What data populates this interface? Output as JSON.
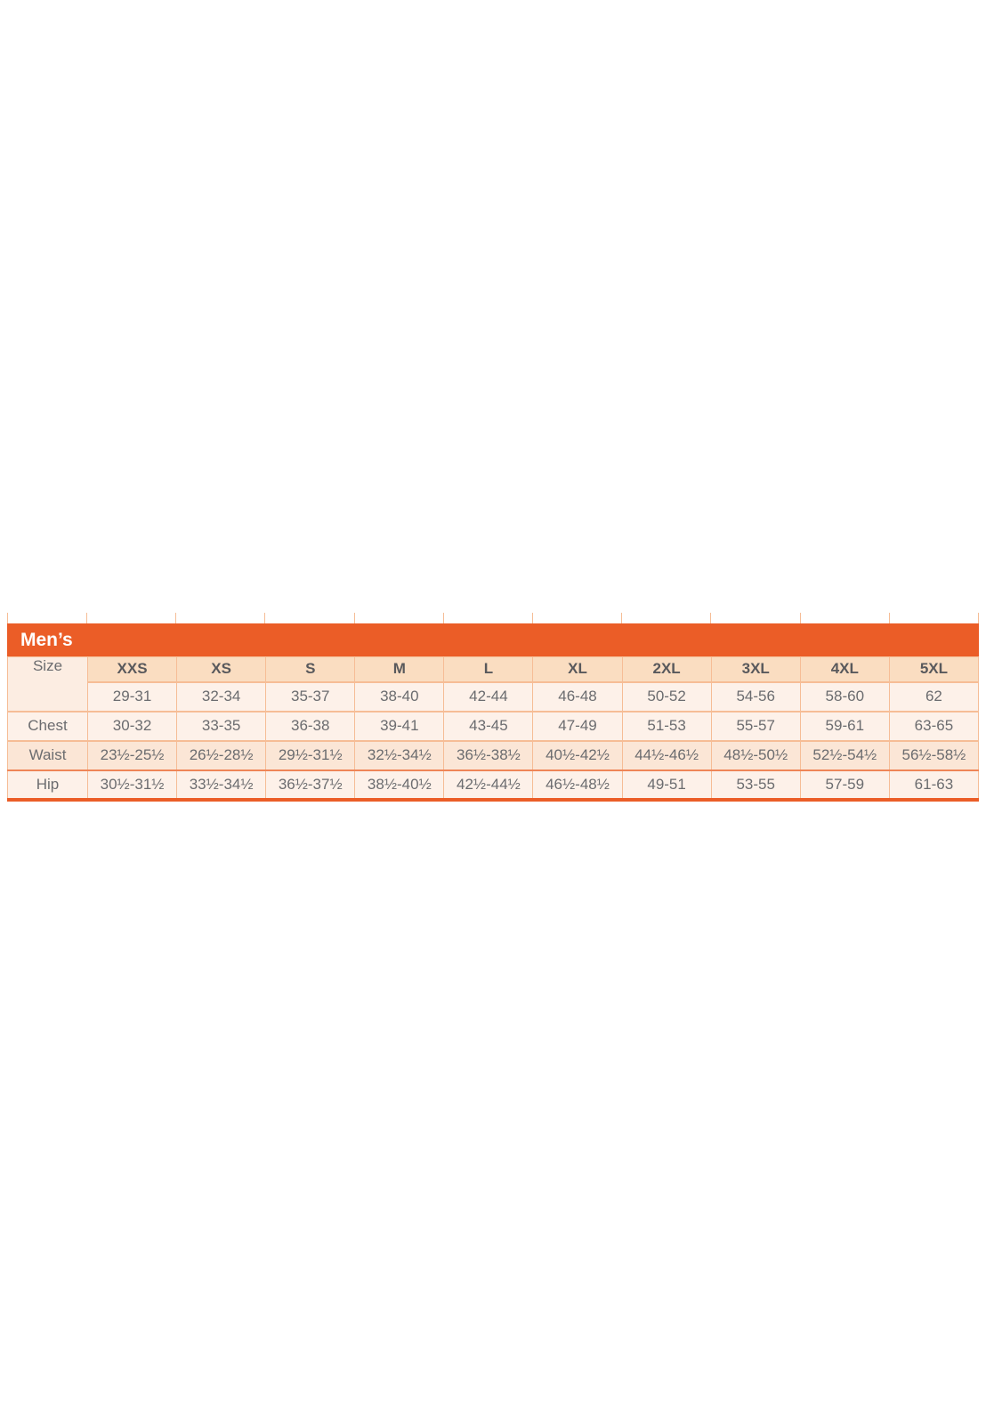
{
  "chart": {
    "title": "Men’s",
    "colors": {
      "accent_orange": "#EB5D27",
      "header_cell_bg": "#FADDC1",
      "label_cell_bg": "#FCEDE2",
      "row_light_bg": "#FDF1E9",
      "row_dark_bg": "#FBE6D6",
      "border_light": "#F6BD96",
      "border_strong": "#EF8557",
      "text_gray": "#6B6C6F",
      "header_text": "#59595C",
      "title_text": "#FFFFFF"
    },
    "table": {
      "size_label": "Size",
      "columns": [
        "XXS",
        "XS",
        "S",
        "M",
        "L",
        "XL",
        "2XL",
        "3XL",
        "4XL",
        "5XL"
      ],
      "numeric_sizes": [
        "29-31",
        "32-34",
        "35-37",
        "38-40",
        "42-44",
        "46-48",
        "50-52",
        "54-56",
        "58-60",
        "62"
      ],
      "rows": [
        {
          "label": "Chest",
          "shade": "light",
          "values": [
            "30-32",
            "33-35",
            "36-38",
            "39-41",
            "43-45",
            "47-49",
            "51-53",
            "55-57",
            "59-61",
            "63-65"
          ]
        },
        {
          "label": "Waist",
          "shade": "dark",
          "values": [
            "23½-25½",
            "26½-28½",
            "29½-31½",
            "32½-34½",
            "36½-38½",
            "40½-42½",
            "44½-46½",
            "48½-50½",
            "52½-54½",
            "56½-58½"
          ]
        },
        {
          "label": "Hip",
          "shade": "light",
          "values": [
            "30½-31½",
            "33½-34½",
            "36½-37½",
            "38½-40½",
            "42½-44½",
            "46½-48½",
            "49-51",
            "53-55",
            "57-59",
            "61-63"
          ]
        }
      ]
    }
  },
  "chart_data": {
    "type": "table",
    "title": "Men’s",
    "columns": [
      "Size",
      "XXS",
      "XS",
      "S",
      "M",
      "L",
      "XL",
      "2XL",
      "3XL",
      "4XL",
      "5XL"
    ],
    "rows": [
      [
        "",
        "29-31",
        "32-34",
        "35-37",
        "38-40",
        "42-44",
        "46-48",
        "50-52",
        "54-56",
        "58-60",
        "62"
      ],
      [
        "Chest",
        "30-32",
        "33-35",
        "36-38",
        "39-41",
        "43-45",
        "47-49",
        "51-53",
        "55-57",
        "59-61",
        "63-65"
      ],
      [
        "Waist",
        "23½-25½",
        "26½-28½",
        "29½-31½",
        "32½-34½",
        "36½-38½",
        "40½-42½",
        "44½-46½",
        "48½-50½",
        "52½-54½",
        "56½-58½"
      ],
      [
        "Hip",
        "30½-31½",
        "33½-34½",
        "36½-37½",
        "38½-40½",
        "42½-44½",
        "46½-48½",
        "49-51",
        "53-55",
        "57-59",
        "61-63"
      ]
    ],
    "layout": {
      "header_band_color": "#EB5D27",
      "grid": true,
      "legend": "none"
    }
  }
}
